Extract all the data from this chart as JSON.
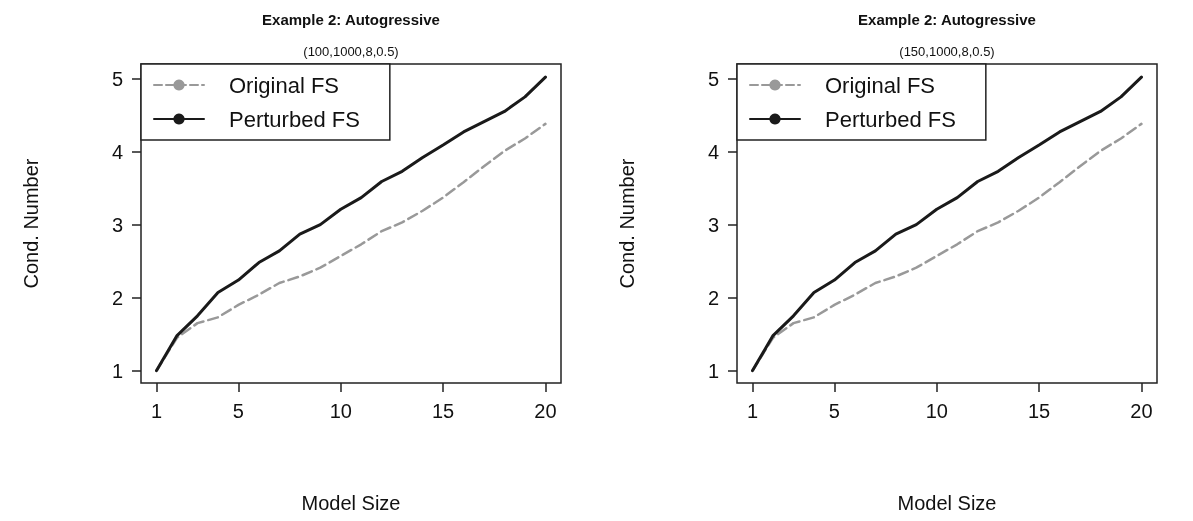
{
  "chart_data": [
    {
      "type": "line",
      "title": "Example 2: Autogressive",
      "subtitle": "(100,1000,8,0.5)",
      "xlabel": "Model Size",
      "ylabel": "Cond. Number",
      "x": [
        1,
        2,
        3,
        4,
        5,
        6,
        7,
        8,
        9,
        10,
        11,
        12,
        13,
        14,
        15,
        16,
        17,
        18,
        19,
        20
      ],
      "xlim": [
        0.24,
        20.76
      ],
      "xticks": [
        1,
        5,
        10,
        15,
        20
      ],
      "ylim": [
        0.83,
        5.2
      ],
      "yticks": [
        1,
        2,
        3,
        4,
        5
      ],
      "legend": "top left",
      "grid": false,
      "series": [
        {
          "name": "Original FS",
          "color": "#999999",
          "line_style": "dashed",
          "values": [
            1.0,
            1.45,
            1.65,
            1.73,
            1.9,
            2.04,
            2.2,
            2.29,
            2.41,
            2.57,
            2.73,
            2.91,
            3.03,
            3.19,
            3.37,
            3.58,
            3.8,
            4.01,
            4.18,
            4.38
          ]
        },
        {
          "name": "Perturbed FS",
          "color": "#1a1a1a",
          "line_style": "solid",
          "values": [
            1.0,
            1.48,
            1.75,
            2.07,
            2.24,
            2.48,
            2.64,
            2.87,
            3.0,
            3.21,
            3.37,
            3.59,
            3.73,
            3.92,
            4.09,
            4.27,
            4.41,
            4.55,
            4.75,
            5.02
          ]
        }
      ]
    },
    {
      "type": "line",
      "title": "Example 2: Autogressive",
      "subtitle": "(150,1000,8,0.5)",
      "xlabel": "Model Size",
      "ylabel": "Cond. Number",
      "x": [
        1,
        2,
        3,
        4,
        5,
        6,
        7,
        8,
        9,
        10,
        11,
        12,
        13,
        14,
        15,
        16,
        17,
        18,
        19,
        20
      ],
      "xlim": [
        0.24,
        20.76
      ],
      "xticks": [
        1,
        5,
        10,
        15,
        20
      ],
      "ylim": [
        0.83,
        5.2
      ],
      "yticks": [
        1,
        2,
        3,
        4,
        5
      ],
      "legend": "top left",
      "grid": false,
      "series": [
        {
          "name": "Original FS",
          "color": "#999999",
          "line_style": "dashed",
          "values": [
            1.0,
            1.45,
            1.65,
            1.73,
            1.9,
            2.04,
            2.2,
            2.29,
            2.41,
            2.57,
            2.73,
            2.91,
            3.03,
            3.19,
            3.37,
            3.58,
            3.8,
            4.01,
            4.18,
            4.38
          ]
        },
        {
          "name": "Perturbed FS",
          "color": "#1a1a1a",
          "line_style": "solid",
          "values": [
            1.0,
            1.48,
            1.75,
            2.07,
            2.24,
            2.48,
            2.64,
            2.87,
            3.0,
            3.21,
            3.37,
            3.59,
            3.73,
            3.92,
            4.09,
            4.27,
            4.41,
            4.55,
            4.75,
            5.02
          ]
        }
      ]
    }
  ]
}
